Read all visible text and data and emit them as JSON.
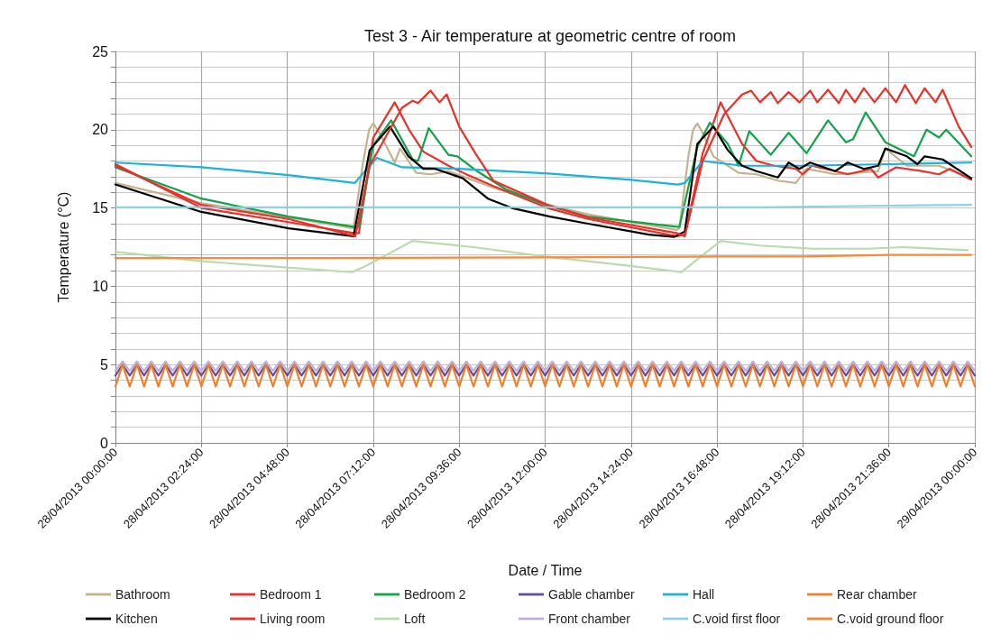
{
  "chart_data": {
    "type": "line",
    "title": "Test 3 - Air temperature at geometric centre of room",
    "xlabel": "Date / Time",
    "ylabel": "Temperature (°C)",
    "xlim": [
      "2013-04-28T00:00",
      "2013-04-29T00:00"
    ],
    "xticks": [
      {
        "value": "2013-04-28T00:00",
        "label": "28/04/2013 00:00:00"
      },
      {
        "value": "2013-04-28T02:24",
        "label": "28/04/2013 02:24:00"
      },
      {
        "value": "2013-04-28T04:48",
        "label": "28/04/2013 04:48:00"
      },
      {
        "value": "2013-04-28T07:12",
        "label": "28/04/2013 07:12:00"
      },
      {
        "value": "2013-04-28T09:36",
        "label": "28/04/2013 09:36:00"
      },
      {
        "value": "2013-04-28T12:00",
        "label": "28/04/2013 12:00:00"
      },
      {
        "value": "2013-04-28T14:24",
        "label": "28/04/2013 14:24:00"
      },
      {
        "value": "2013-04-28T16:48",
        "label": "28/04/2013 16:48:00"
      },
      {
        "value": "2013-04-28T19:12",
        "label": "28/04/2013 19:12:00"
      },
      {
        "value": "2013-04-28T21:36",
        "label": "28/04/2013 21:36:00"
      },
      {
        "value": "2013-04-29T00:00",
        "label": "29/04/2013 00:00:00"
      }
    ],
    "ylim": [
      0,
      25
    ],
    "yticks": [
      0,
      {
        "value": 1,
        "label": null
      },
      {
        "value": 2,
        "label": null
      },
      {
        "value": 3,
        "label": null
      },
      {
        "value": 4,
        "label": null
      },
      5,
      {
        "value": 6,
        "label": null
      },
      {
        "value": 7,
        "label": null
      },
      {
        "value": 8,
        "label": null
      },
      {
        "value": 9,
        "label": null
      },
      10,
      {
        "value": 11,
        "label": null
      },
      {
        "value": 12,
        "label": null
      },
      {
        "value": 13,
        "label": null
      },
      {
        "value": 14,
        "label": null
      },
      15,
      {
        "value": 16,
        "label": null
      },
      {
        "value": 17,
        "label": null
      },
      {
        "value": 18,
        "label": null
      },
      {
        "value": 19,
        "label": null
      },
      20,
      {
        "value": 21,
        "label": null
      },
      {
        "value": 22,
        "label": null
      },
      {
        "value": 23,
        "label": null
      },
      {
        "value": 24,
        "label": null
      },
      25
    ],
    "grid": true,
    "legend": "bottom",
    "marker": "none",
    "line_style": "solid",
    "x": [
      "2013-04-28T00:00",
      "2013-04-28T00:12",
      "2013-04-28T00:24",
      "2013-04-28T00:36",
      "2013-04-28T00:48",
      "2013-04-28T01:00",
      "2013-04-28T01:12",
      "2013-04-28T01:24",
      "2013-04-28T01:36",
      "2013-04-28T01:48",
      "2013-04-28T02:00",
      "2013-04-28T02:12",
      "2013-04-28T02:24",
      "2013-04-28T02:36",
      "2013-04-28T02:48",
      "2013-04-28T03:00",
      "2013-04-28T03:12",
      "2013-04-28T03:24",
      "2013-04-28T03:36",
      "2013-04-28T03:48",
      "2013-04-28T04:00",
      "2013-04-28T04:12",
      "2013-04-28T04:24",
      "2013-04-28T04:36",
      "2013-04-28T04:48",
      "2013-04-28T05:00",
      "2013-04-28T05:12",
      "2013-04-28T05:24",
      "2013-04-28T05:36",
      "2013-04-28T05:48",
      "2013-04-28T06:00",
      "2013-04-28T06:12",
      "2013-04-28T06:24",
      "2013-04-28T06:36",
      "2013-04-28T06:48",
      "2013-04-28T07:00",
      "2013-04-28T07:12",
      "2013-04-28T07:24",
      "2013-04-28T07:36",
      "2013-04-28T07:48",
      "2013-04-28T08:00",
      "2013-04-28T08:12",
      "2013-04-28T08:24",
      "2013-04-28T08:36",
      "2013-04-28T08:48",
      "2013-04-28T09:00",
      "2013-04-28T09:12",
      "2013-04-28T09:24",
      "2013-04-28T09:36",
      "2013-04-28T09:48",
      "2013-04-28T10:00",
      "2013-04-28T10:12",
      "2013-04-28T10:24",
      "2013-04-28T10:36",
      "2013-04-28T10:48",
      "2013-04-28T11:00",
      "2013-04-28T11:12",
      "2013-04-28T11:24",
      "2013-04-28T11:36",
      "2013-04-28T11:48",
      "2013-04-28T12:00",
      "2013-04-28T12:12",
      "2013-04-28T12:24",
      "2013-04-28T12:36",
      "2013-04-28T12:48",
      "2013-04-28T13:00",
      "2013-04-28T13:12",
      "2013-04-28T13:24",
      "2013-04-28T13:36",
      "2013-04-28T13:48",
      "2013-04-28T14:00",
      "2013-04-28T14:12",
      "2013-04-28T14:24",
      "2013-04-28T14:36",
      "2013-04-28T14:48",
      "2013-04-28T15:00",
      "2013-04-28T15:12",
      "2013-04-28T15:24",
      "2013-04-28T15:36",
      "2013-04-28T15:48",
      "2013-04-28T16:00",
      "2013-04-28T16:12",
      "2013-04-28T16:24",
      "2013-04-28T16:36",
      "2013-04-28T16:48",
      "2013-04-28T17:00",
      "2013-04-28T17:12",
      "2013-04-28T17:24",
      "2013-04-28T17:36",
      "2013-04-28T17:48",
      "2013-04-28T18:00",
      "2013-04-28T18:12",
      "2013-04-28T18:24",
      "2013-04-28T18:36",
      "2013-04-28T18:48",
      "2013-04-28T19:00",
      "2013-04-28T19:12",
      "2013-04-28T19:24",
      "2013-04-28T19:36",
      "2013-04-28T19:48",
      "2013-04-28T20:00",
      "2013-04-28T20:12",
      "2013-04-28T20:24",
      "2013-04-28T20:36",
      "2013-04-28T20:48",
      "2013-04-28T21:00",
      "2013-04-28T21:12",
      "2013-04-28T21:24",
      "2013-04-28T21:36",
      "2013-04-28T21:48",
      "2013-04-28T22:00",
      "2013-04-28T22:12",
      "2013-04-28T22:24",
      "2013-04-28T22:36",
      "2013-04-28T22:48",
      "2013-04-28T23:00",
      "2013-04-28T23:12",
      "2013-04-28T23:24",
      "2013-04-28T23:36",
      "2013-04-28T23:48",
      "2013-04-29T00:00"
    ],
    "series": [
      {
        "name": "Bathroom",
        "color": "#c3b38f",
        "x": [
          "2013-04-28T00:00",
          "2013-04-28T02:24",
          "2013-04-28T04:50",
          "2013-04-28T06:39",
          "2013-04-28T06:54",
          "2013-04-28T07:05",
          "2013-04-28T07:12",
          "2013-04-28T07:21",
          "2013-04-28T07:48",
          "2013-04-28T07:57",
          "2013-04-28T08:24",
          "2013-04-28T08:48",
          "2013-04-28T09:18",
          "2013-04-28T10:33",
          "2013-04-28T12:04",
          "2013-04-28T13:12",
          "2013-04-28T15:40",
          "2013-04-28T15:45",
          "2013-04-28T16:00",
          "2013-04-28T16:08",
          "2013-04-28T16:15",
          "2013-04-28T16:24",
          "2013-04-28T16:42",
          "2013-04-28T17:24",
          "2013-04-28T17:54",
          "2013-04-28T18:30",
          "2013-04-28T19:00",
          "2013-04-28T19:18",
          "2013-04-28T20:06",
          "2013-04-28T21:18",
          "2013-04-28T21:30",
          "2013-04-28T22:06",
          "2013-04-28T23:00",
          "2013-04-28T23:54"
        ],
        "values": [
          16.6,
          15.3,
          14.4,
          13.7,
          17.7,
          20,
          20.4,
          19.9,
          17.9,
          18.8,
          17.25,
          17.15,
          17.35,
          16.3,
          15.2,
          14.6,
          13.6,
          13.7,
          18.3,
          20,
          20.4,
          19.8,
          18.3,
          17.25,
          17.15,
          16.75,
          16.6,
          17.5,
          17.15,
          17.35,
          18.8,
          17.7,
          17.7,
          16.9
        ]
      },
      {
        "name": "Bedroom 1",
        "color": "#e8312a",
        "x": [
          "2013-04-28T00:00",
          "2013-04-28T02:24",
          "2013-04-28T04:50",
          "2013-04-28T06:39",
          "2013-04-28T06:48",
          "2013-04-28T07:12",
          "2013-04-28T07:48",
          "2013-04-28T08:12",
          "2013-04-28T08:36",
          "2013-04-28T09:18",
          "2013-04-28T09:48",
          "2013-04-28T10:33",
          "2013-04-28T12:04",
          "2013-04-28T13:12",
          "2013-04-28T15:40",
          "2013-04-28T15:54",
          "2013-04-28T16:24",
          "2013-04-28T16:54",
          "2013-04-28T17:30",
          "2013-04-28T17:54",
          "2013-04-28T18:24",
          "2013-04-28T19:00",
          "2013-04-28T19:12",
          "2013-04-28T19:27",
          "2013-04-28T20:06",
          "2013-04-28T20:27",
          "2013-04-28T21:06",
          "2013-04-28T21:18",
          "2013-04-28T21:48",
          "2013-04-28T22:33",
          "2013-04-28T23:00",
          "2013-04-28T23:18",
          "2013-04-28T23:54"
        ],
        "values": [
          17.8,
          15,
          14.1,
          13.4,
          13.4,
          19.5,
          21.75,
          20,
          18.6,
          17.7,
          17.15,
          16.4,
          15,
          14.3,
          13.2,
          13.3,
          18.5,
          21.75,
          19.1,
          18,
          17.7,
          17.5,
          17.15,
          17.7,
          17.35,
          17.15,
          17.5,
          16.95,
          17.6,
          17.35,
          17.15,
          17.5,
          16.8
        ]
      },
      {
        "name": "Bedroom 2",
        "color": "#12a24a",
        "x": [
          "2013-04-28T00:00",
          "2013-04-28T02:24",
          "2013-04-28T04:50",
          "2013-04-28T06:39",
          "2013-04-28T06:48",
          "2013-04-28T07:12",
          "2013-04-28T07:42",
          "2013-04-28T08:18",
          "2013-04-28T08:27",
          "2013-04-28T08:45",
          "2013-04-28T09:18",
          "2013-04-28T09:33",
          "2013-04-28T10:06",
          "2013-04-28T10:54",
          "2013-04-28T12:04",
          "2013-04-28T13:12",
          "2013-04-28T15:40",
          "2013-04-28T15:45",
          "2013-04-28T16:15",
          "2013-04-28T16:36",
          "2013-04-28T17:06",
          "2013-04-28T17:24",
          "2013-04-28T17:42",
          "2013-04-28T18:18",
          "2013-04-28T18:48",
          "2013-04-28T19:18",
          "2013-04-28T19:54",
          "2013-04-28T20:24",
          "2013-04-28T20:36",
          "2013-04-28T20:57",
          "2013-04-28T21:30",
          "2013-04-28T22:18",
          "2013-04-28T22:39",
          "2013-04-28T23:00",
          "2013-04-28T23:12",
          "2013-04-28T23:54"
        ],
        "values": [
          17.6,
          15.6,
          14.45,
          13.8,
          13.8,
          19,
          20.6,
          18.1,
          18,
          20.1,
          18.4,
          18.3,
          17.35,
          16.2,
          15.15,
          14.45,
          13.8,
          13.8,
          18.9,
          20.45,
          19.1,
          17.7,
          19.9,
          18.4,
          19.8,
          18.5,
          20.6,
          19.2,
          19.4,
          21.1,
          19.2,
          18.3,
          20,
          19.5,
          20,
          18.3
        ]
      },
      {
        "name": "Gable chamber",
        "color": "#6a4c9c",
        "values": [
          4.3,
          5,
          4.3,
          5,
          4.3,
          5,
          4.3,
          5,
          4.3,
          5,
          4.3,
          5,
          4.3,
          5,
          4.3,
          5,
          4.3,
          5,
          4.3,
          5,
          4.3,
          5,
          4.3,
          5,
          4.3,
          5,
          4.3,
          5,
          4.3,
          5,
          4.3,
          5,
          4.3,
          5,
          4.3,
          5,
          4.3,
          5,
          4.3,
          5,
          4.3,
          5,
          4.3,
          5,
          4.3,
          5,
          4.3,
          5,
          4.3,
          5,
          4.3,
          5,
          4.3,
          5,
          4.3,
          5,
          4.3,
          5,
          4.3,
          5,
          4.3,
          5,
          4.3,
          5,
          4.3,
          5,
          4.3,
          5,
          4.3,
          5,
          4.3,
          5,
          4.3,
          5,
          4.3,
          5,
          4.3,
          5,
          4.3,
          5,
          4.3,
          5,
          4.3,
          5,
          4.3,
          5,
          4.3,
          5,
          4.3,
          5,
          4.3,
          5,
          4.3,
          5,
          4.3,
          5,
          4.3,
          5,
          4.3,
          5,
          4.3,
          5,
          4.3,
          5,
          4.3,
          5,
          4.3,
          5,
          4.3,
          5,
          4.3,
          5,
          4.3,
          5,
          4.3,
          5,
          4.3,
          5,
          4.3,
          5,
          4.3
        ]
      },
      {
        "name": "Hall",
        "color": "#1cb3d6",
        "x": [
          "2013-04-28T00:00",
          "2013-04-28T02:24",
          "2013-04-28T04:50",
          "2013-04-28T06:41",
          "2013-04-28T07:18",
          "2013-04-28T08:00",
          "2013-04-28T09:36",
          "2013-04-28T12:06",
          "2013-04-28T14:24",
          "2013-04-28T15:42",
          "2013-04-28T15:54",
          "2013-04-28T16:24",
          "2013-04-28T17:30",
          "2013-04-28T19:12",
          "2013-04-28T21:36",
          "2013-04-28T23:54"
        ],
        "values": [
          17.9,
          17.6,
          17.1,
          16.6,
          18.2,
          17.6,
          17.5,
          17.2,
          16.8,
          16.5,
          16.6,
          18,
          17.7,
          17.7,
          17.8,
          17.9
        ]
      },
      {
        "name": "Rear chamber",
        "color": "#f07f2a",
        "values": [
          3.6,
          5,
          3.6,
          5,
          3.6,
          5,
          3.6,
          5,
          3.6,
          5,
          3.6,
          5,
          3.6,
          5,
          3.6,
          5,
          3.6,
          5,
          3.6,
          5,
          3.6,
          5,
          3.6,
          5,
          3.6,
          5,
          3.6,
          5,
          3.6,
          5,
          3.6,
          5,
          3.6,
          5,
          3.6,
          5,
          3.6,
          5,
          3.6,
          5,
          3.6,
          5,
          3.6,
          5,
          3.6,
          5,
          3.6,
          5,
          3.6,
          5,
          3.6,
          5,
          3.6,
          5,
          3.6,
          5,
          3.6,
          5,
          3.6,
          5,
          3.6,
          5,
          3.6,
          5,
          3.6,
          5,
          3.6,
          5,
          3.6,
          5,
          3.6,
          5,
          3.6,
          5,
          3.6,
          5,
          3.6,
          5,
          3.6,
          5,
          3.6,
          5,
          3.6,
          5,
          3.6,
          5,
          3.6,
          5,
          3.6,
          5,
          3.6,
          5,
          3.6,
          5,
          3.6,
          5,
          3.6,
          5,
          3.6,
          5,
          3.6,
          5,
          3.6,
          5,
          3.6,
          5,
          3.6,
          5,
          3.6,
          5,
          3.6,
          5,
          3.6,
          5,
          3.6,
          5,
          3.6,
          5,
          3.6,
          5,
          3.6
        ]
      },
      {
        "name": "Kitchen",
        "color": "#000000",
        "x": [
          "2013-04-28T00:00",
          "2013-04-28T02:24",
          "2013-04-28T04:50",
          "2013-04-28T06:39",
          "2013-04-28T07:06",
          "2013-04-28T07:40",
          "2013-04-28T08:11",
          "2013-04-28T08:36",
          "2013-04-28T08:56",
          "2013-04-28T09:42",
          "2013-04-28T10:24",
          "2013-04-28T11:04",
          "2013-04-28T12:08",
          "2013-04-28T13:12",
          "2013-04-28T14:54",
          "2013-04-28T15:36",
          "2013-04-28T15:54",
          "2013-04-28T16:15",
          "2013-04-28T16:42",
          "2013-04-28T17:06",
          "2013-04-28T17:30",
          "2013-04-28T17:54",
          "2013-04-28T18:30",
          "2013-04-28T18:48",
          "2013-04-28T19:06",
          "2013-04-28T19:24",
          "2013-04-28T20:06",
          "2013-04-28T20:27",
          "2013-04-28T20:54",
          "2013-04-28T21:18",
          "2013-04-28T21:30",
          "2013-04-28T22:06",
          "2013-04-28T22:24",
          "2013-04-28T22:36",
          "2013-04-28T23:06",
          "2013-04-28T23:54"
        ],
        "values": [
          16.5,
          14.75,
          13.7,
          13.2,
          18.7,
          20.2,
          18.3,
          17.5,
          17.5,
          16.9,
          15.6,
          15,
          14.45,
          14,
          13.3,
          13.15,
          13.5,
          19.1,
          20.2,
          18.7,
          17.7,
          17.35,
          16.95,
          17.9,
          17.5,
          17.9,
          17.35,
          17.9,
          17.5,
          17.7,
          18.8,
          18.3,
          17.8,
          18.3,
          18.1,
          16.9
        ]
      },
      {
        "name": "Living room",
        "color": "#e8312a",
        "x": [
          "2013-04-28T00:00",
          "2013-04-28T02:24",
          "2013-04-28T04:50",
          "2013-04-28T06:42",
          "2013-04-28T07:06",
          "2013-04-28T08:00",
          "2013-04-28T08:18",
          "2013-04-28T08:27",
          "2013-04-28T08:48",
          "2013-04-28T09:03",
          "2013-04-28T09:15",
          "2013-04-28T09:36",
          "2013-04-28T10:03",
          "2013-04-28T10:33",
          "2013-04-28T12:04",
          "2013-04-28T13:12",
          "2013-04-28T15:40",
          "2013-04-28T15:54",
          "2013-04-28T16:24",
          "2013-04-28T17:00",
          "2013-04-28T17:30",
          "2013-04-28T17:45",
          "2013-04-28T18:00",
          "2013-04-28T18:18",
          "2013-04-28T18:30",
          "2013-04-28T18:48",
          "2013-04-28T19:06",
          "2013-04-28T19:24",
          "2013-04-28T19:36",
          "2013-04-28T19:54",
          "2013-04-28T20:12",
          "2013-04-28T20:24",
          "2013-04-28T20:39",
          "2013-04-28T20:54",
          "2013-04-28T21:12",
          "2013-04-28T21:30",
          "2013-04-28T21:48",
          "2013-04-28T22:03",
          "2013-04-28T22:21",
          "2013-04-28T22:36",
          "2013-04-28T22:54",
          "2013-04-28T23:06",
          "2013-04-28T23:33",
          "2013-04-28T23:54"
        ],
        "values": [
          17.7,
          15.2,
          14.3,
          13.2,
          17.7,
          21.4,
          21.85,
          21.7,
          22.5,
          21.75,
          22.25,
          20.2,
          18.5,
          16.75,
          15.2,
          14.4,
          13.4,
          13.2,
          18,
          21,
          22.25,
          22.5,
          21.75,
          22.4,
          21.7,
          22.4,
          21.75,
          22.5,
          21.75,
          22.55,
          21.7,
          22.55,
          21.75,
          22.65,
          21.75,
          22.65,
          21.75,
          22.85,
          21.7,
          22.65,
          21.75,
          22.55,
          20.2,
          18.9
        ]
      },
      {
        "name": "Loft",
        "color": "#b8dcab",
        "x": [
          "2013-04-28T00:00",
          "2013-04-28T02:24",
          "2013-04-28T04:48",
          "2013-04-28T06:36",
          "2013-04-28T07:00",
          "2013-04-28T08:18",
          "2013-04-28T10:00",
          "2013-04-28T12:00",
          "2013-04-28T14:00",
          "2013-04-28T15:30",
          "2013-04-28T15:48",
          "2013-04-28T16:54",
          "2013-04-28T18:00",
          "2013-04-28T19:30",
          "2013-04-28T21:00",
          "2013-04-28T22:00",
          "2013-04-28T23:48"
        ],
        "values": [
          12.2,
          11.6,
          11.2,
          10.9,
          11.3,
          12.9,
          12.5,
          11.9,
          11.4,
          11,
          10.9,
          12.9,
          12.6,
          12.4,
          12.4,
          12.5,
          12.3
        ]
      },
      {
        "name": "Front chamber",
        "color": "#bfb0d8",
        "values": [
          4.6,
          5.2,
          4.6,
          5.2,
          4.6,
          5.2,
          4.6,
          5.2,
          4.6,
          5.2,
          4.6,
          5.2,
          4.6,
          5.2,
          4.6,
          5.2,
          4.6,
          5.2,
          4.6,
          5.2,
          4.6,
          5.2,
          4.6,
          5.2,
          4.6,
          5.2,
          4.6,
          5.2,
          4.6,
          5.2,
          4.6,
          5.2,
          4.6,
          5.2,
          4.6,
          5.2,
          4.6,
          5.2,
          4.6,
          5.2,
          4.6,
          5.2,
          4.6,
          5.2,
          4.6,
          5.2,
          4.6,
          5.2,
          4.6,
          5.2,
          4.6,
          5.2,
          4.6,
          5.2,
          4.6,
          5.2,
          4.6,
          5.2,
          4.6,
          5.2,
          4.6,
          5.2,
          4.6,
          5.2,
          4.6,
          5.2,
          4.6,
          5.2,
          4.6,
          5.2,
          4.6,
          5.2,
          4.6,
          5.2,
          4.6,
          5.2,
          4.6,
          5.2,
          4.6,
          5.2,
          4.6,
          5.2,
          4.6,
          5.2,
          4.6,
          5.2,
          4.6,
          5.2,
          4.6,
          5.2,
          4.6,
          5.2,
          4.6,
          5.2,
          4.6,
          5.2,
          4.6,
          5.2,
          4.6,
          5.2,
          4.6,
          5.2,
          4.6,
          5.2,
          4.6,
          5.2,
          4.6,
          5.2,
          4.6,
          5.2,
          4.6,
          5.2,
          4.6,
          5.2,
          4.6,
          5.2,
          4.6,
          5.2,
          4.6,
          5.2,
          4.6
        ]
      },
      {
        "name": "C.void first floor",
        "color": "#8dd2e4",
        "x": [
          "2013-04-28T00:00",
          "2013-04-28T06:00",
          "2013-04-28T12:00",
          "2013-04-28T18:00",
          "2013-04-28T21:36",
          "2013-04-28T23:54"
        ],
        "values": [
          15.05,
          15.05,
          15.05,
          15.05,
          15.15,
          15.2
        ]
      },
      {
        "name": "C.void ground floor",
        "color": "#f48a3c",
        "x": [
          "2013-04-28T00:00",
          "2013-04-28T06:00",
          "2013-04-28T12:00",
          "2013-04-28T16:48",
          "2013-04-28T19:12",
          "2013-04-28T21:36",
          "2013-04-28T23:54"
        ],
        "values": [
          11.8,
          11.8,
          11.85,
          11.9,
          11.9,
          12,
          12
        ]
      }
    ]
  }
}
